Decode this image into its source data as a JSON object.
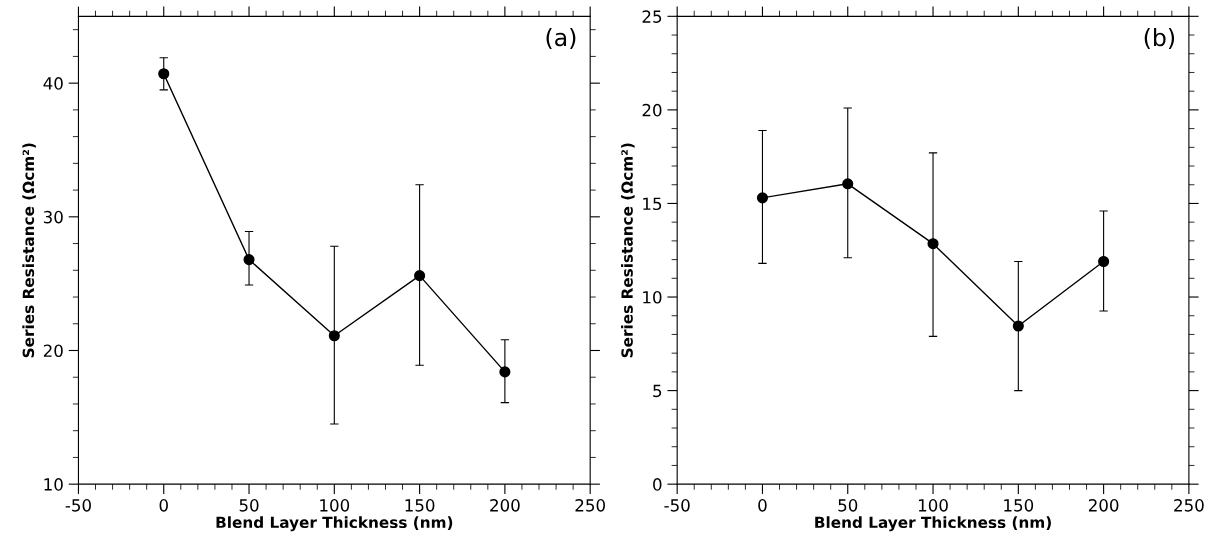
{
  "chart_data": [
    {
      "type": "line",
      "xlabel": "Blend Layer Thickness (nm)",
      "ylabel": "Series Resistance (Ωcm²)",
      "annotations": [
        "(a)"
      ],
      "marker": "circle",
      "line_style": "solid",
      "x": [
        0,
        50,
        100,
        150,
        200
      ],
      "series": [
        {
          "color": "#000000",
          "values": [
            40.7,
            26.8,
            21.1,
            25.6,
            18.4
          ],
          "errors": [
            [
              39.5,
              41.9
            ],
            [
              24.9,
              28.9
            ],
            [
              14.5,
              27.8
            ],
            [
              18.9,
              32.4
            ],
            [
              16.1,
              20.8
            ]
          ]
        }
      ],
      "xlim": [
        -50,
        250
      ],
      "ylim": [
        10,
        45
      ],
      "xticks": [
        -50,
        {
          "value": -40,
          "label": null
        },
        {
          "value": -30,
          "label": null
        },
        {
          "value": -20,
          "label": null
        },
        {
          "value": -10,
          "label": null
        },
        0,
        {
          "value": 10,
          "label": null
        },
        {
          "value": 20,
          "label": null
        },
        {
          "value": 30,
          "label": null
        },
        {
          "value": 40,
          "label": null
        },
        50,
        {
          "value": 60,
          "label": null
        },
        {
          "value": 70,
          "label": null
        },
        {
          "value": 80,
          "label": null
        },
        {
          "value": 90,
          "label": null
        },
        100,
        {
          "value": 110,
          "label": null
        },
        {
          "value": 120,
          "label": null
        },
        {
          "value": 130,
          "label": null
        },
        {
          "value": 140,
          "label": null
        },
        150,
        {
          "value": 160,
          "label": null
        },
        {
          "value": 170,
          "label": null
        },
        {
          "value": 180,
          "label": null
        },
        {
          "value": 190,
          "label": null
        },
        200,
        {
          "value": 210,
          "label": null
        },
        {
          "value": 220,
          "label": null
        },
        {
          "value": 230,
          "label": null
        },
        {
          "value": 240,
          "label": null
        },
        250
      ],
      "yticks": [
        10,
        {
          "value": 12,
          "label": null
        },
        {
          "value": 14,
          "label": null
        },
        {
          "value": 16,
          "label": null
        },
        {
          "value": 18,
          "label": null
        },
        20,
        {
          "value": 22,
          "label": null
        },
        {
          "value": 24,
          "label": null
        },
        {
          "value": 26,
          "label": null
        },
        {
          "value": 28,
          "label": null
        },
        30,
        {
          "value": 32,
          "label": null
        },
        {
          "value": 34,
          "label": null
        },
        {
          "value": 36,
          "label": null
        },
        {
          "value": 38,
          "label": null
        },
        40,
        {
          "value": 42,
          "label": null
        },
        {
          "value": 44,
          "label": null
        }
      ]
    },
    {
      "type": "line",
      "xlabel": "Blend Layer Thickness (nm)",
      "ylabel": "Series Resistance (Ωcm²)",
      "annotations": [
        "(b)"
      ],
      "marker": "circle",
      "line_style": "solid",
      "x": [
        0,
        50,
        100,
        150,
        200
      ],
      "series": [
        {
          "color": "#000000",
          "values": [
            15.3,
            16.05,
            12.85,
            8.45,
            11.9
          ],
          "errors": [
            [
              11.8,
              18.9
            ],
            [
              12.1,
              20.1
            ],
            [
              7.9,
              17.7
            ],
            [
              5.0,
              11.9
            ],
            [
              9.25,
              14.6
            ]
          ]
        }
      ],
      "xlim": [
        -50,
        250
      ],
      "ylim": [
        0,
        25
      ],
      "xticks": [
        -50,
        {
          "value": -40,
          "label": null
        },
        {
          "value": -30,
          "label": null
        },
        {
          "value": -20,
          "label": null
        },
        {
          "value": -10,
          "label": null
        },
        0,
        {
          "value": 10,
          "label": null
        },
        {
          "value": 20,
          "label": null
        },
        {
          "value": 30,
          "label": null
        },
        {
          "value": 40,
          "label": null
        },
        50,
        {
          "value": 60,
          "label": null
        },
        {
          "value": 70,
          "label": null
        },
        {
          "value": 80,
          "label": null
        },
        {
          "value": 90,
          "label": null
        },
        100,
        {
          "value": 110,
          "label": null
        },
        {
          "value": 120,
          "label": null
        },
        {
          "value": 130,
          "label": null
        },
        {
          "value": 140,
          "label": null
        },
        150,
        {
          "value": 160,
          "label": null
        },
        {
          "value": 170,
          "label": null
        },
        {
          "value": 180,
          "label": null
        },
        {
          "value": 190,
          "label": null
        },
        200,
        {
          "value": 210,
          "label": null
        },
        {
          "value": 220,
          "label": null
        },
        {
          "value": 230,
          "label": null
        },
        {
          "value": 240,
          "label": null
        },
        250
      ],
      "yticks": [
        0,
        {
          "value": 1,
          "label": null
        },
        {
          "value": 2,
          "label": null
        },
        {
          "value": 3,
          "label": null
        },
        {
          "value": 4,
          "label": null
        },
        5,
        {
          "value": 6,
          "label": null
        },
        {
          "value": 7,
          "label": null
        },
        {
          "value": 8,
          "label": null
        },
        {
          "value": 9,
          "label": null
        },
        10,
        {
          "value": 11,
          "label": null
        },
        {
          "value": 12,
          "label": null
        },
        {
          "value": 13,
          "label": null
        },
        {
          "value": 14,
          "label": null
        },
        15,
        {
          "value": 16,
          "label": null
        },
        {
          "value": 17,
          "label": null
        },
        {
          "value": 18,
          "label": null
        },
        {
          "value": 19,
          "label": null
        },
        20,
        {
          "value": 21,
          "label": null
        },
        {
          "value": 22,
          "label": null
        },
        {
          "value": 23,
          "label": null
        },
        {
          "value": 24,
          "label": null
        },
        25
      ]
    }
  ]
}
